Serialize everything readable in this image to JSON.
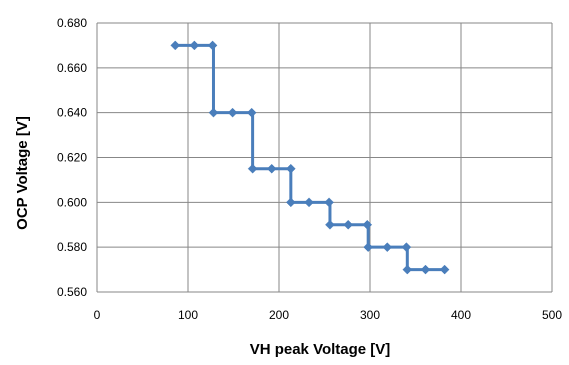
{
  "chart_data": {
    "type": "line",
    "title": "",
    "xlabel": "VH peak Voltage [V]",
    "ylabel": "OCP Voltage [V]",
    "xlim": [
      0,
      500
    ],
    "ylim": [
      0.56,
      0.68
    ],
    "x_ticks": [
      "0",
      "100",
      "200",
      "300",
      "400",
      "500"
    ],
    "y_ticks": [
      "0.560",
      "0.580",
      "0.600",
      "0.620",
      "0.640",
      "0.660",
      "0.680"
    ],
    "grid": true,
    "legend": "none",
    "series": [
      {
        "color": "#4a7ebb",
        "marker": "diamond",
        "step": "post",
        "points": [
          [
            86,
            0.67
          ],
          [
            107,
            0.67
          ],
          [
            127,
            0.67
          ],
          [
            128,
            0.64
          ],
          [
            149,
            0.64
          ],
          [
            170,
            0.64
          ],
          [
            171,
            0.615
          ],
          [
            192,
            0.615
          ],
          [
            213,
            0.615
          ],
          [
            213,
            0.6
          ],
          [
            233,
            0.6
          ],
          [
            255,
            0.6
          ],
          [
            256,
            0.59
          ],
          [
            276,
            0.59
          ],
          [
            297,
            0.59
          ],
          [
            298,
            0.58
          ],
          [
            319,
            0.58
          ],
          [
            340,
            0.58
          ],
          [
            341,
            0.57
          ],
          [
            361,
            0.57
          ],
          [
            382,
            0.57
          ]
        ]
      }
    ]
  }
}
